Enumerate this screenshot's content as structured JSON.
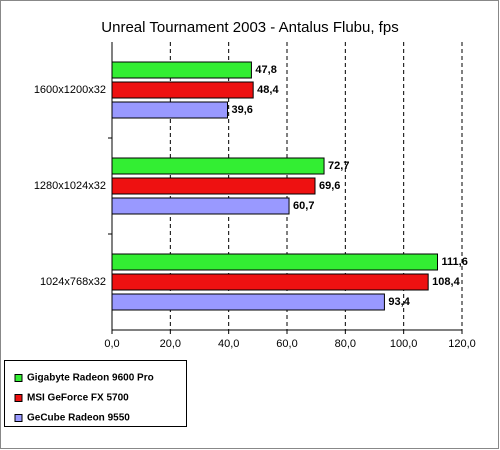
{
  "chart_data": {
    "type": "hbar",
    "title": "Unreal Tournament 2003 - Antalus Flubu, fps",
    "categories": [
      "1600x1200x32",
      "1280x1024x32",
      "1024x768x32"
    ],
    "series": [
      {
        "name": "Gigabyte Radeon 9600 Pro",
        "color": "#33ee33",
        "values": [
          47.8,
          72.7,
          111.6
        ],
        "value_labels": [
          "47,8",
          "72,7",
          "111,6"
        ]
      },
      {
        "name": "MSI GeForce FX 5700",
        "color": "#ee1111",
        "values": [
          48.4,
          69.6,
          108.4
        ],
        "value_labels": [
          "48,4",
          "69,6",
          "108,4"
        ]
      },
      {
        "name": "GeCube Radeon 9550",
        "color": "#9999ff",
        "values": [
          39.6,
          60.7,
          93.4
        ],
        "value_labels": [
          "39,6",
          "60,7",
          "93,4"
        ]
      }
    ],
    "xlim": [
      0,
      120
    ],
    "xticks": [
      {
        "value": 0,
        "label": "0,0"
      },
      {
        "value": 20,
        "label": "20,0"
      },
      {
        "value": 40,
        "label": "40,0"
      },
      {
        "value": 60,
        "label": "60,0"
      },
      {
        "value": 80,
        "label": "80,0"
      },
      {
        "value": 100,
        "label": "100,0"
      },
      {
        "value": 120,
        "label": "120,0"
      }
    ],
    "grid": true
  }
}
